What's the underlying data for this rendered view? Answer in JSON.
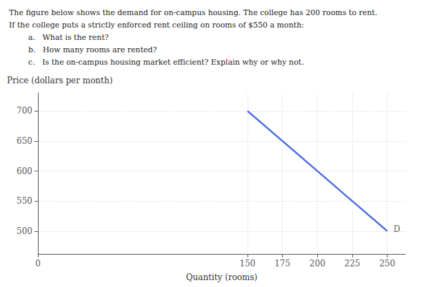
{
  "chart_data": {
    "type": "line",
    "title": "The figure below shows the demand for on-campus housing. The college has 200 rooms to rent.",
    "subtitle": "If the college puts a strictly enforced rent ceiling on rooms of $550 a month:",
    "notes": [
      "a.   What is the rent?",
      "b.   How many rooms are rented?",
      "c.   Is the on-campus housing market efficient? Explain why or why not."
    ],
    "x": [
      150,
      250
    ],
    "values": [
      700,
      500
    ],
    "annotations": [
      {
        "text": "D",
        "x": 252,
        "y": 503
      }
    ],
    "xlabel": "Quantity (rooms)",
    "ylabel": "Price (dollars per month)",
    "xlim": [
      0,
      263
    ],
    "ylim": [
      462,
      730
    ],
    "xticks": [
      0,
      150,
      175,
      200,
      225,
      250
    ],
    "yticks": [
      500,
      550,
      600,
      650,
      700
    ],
    "grid": true
  }
}
